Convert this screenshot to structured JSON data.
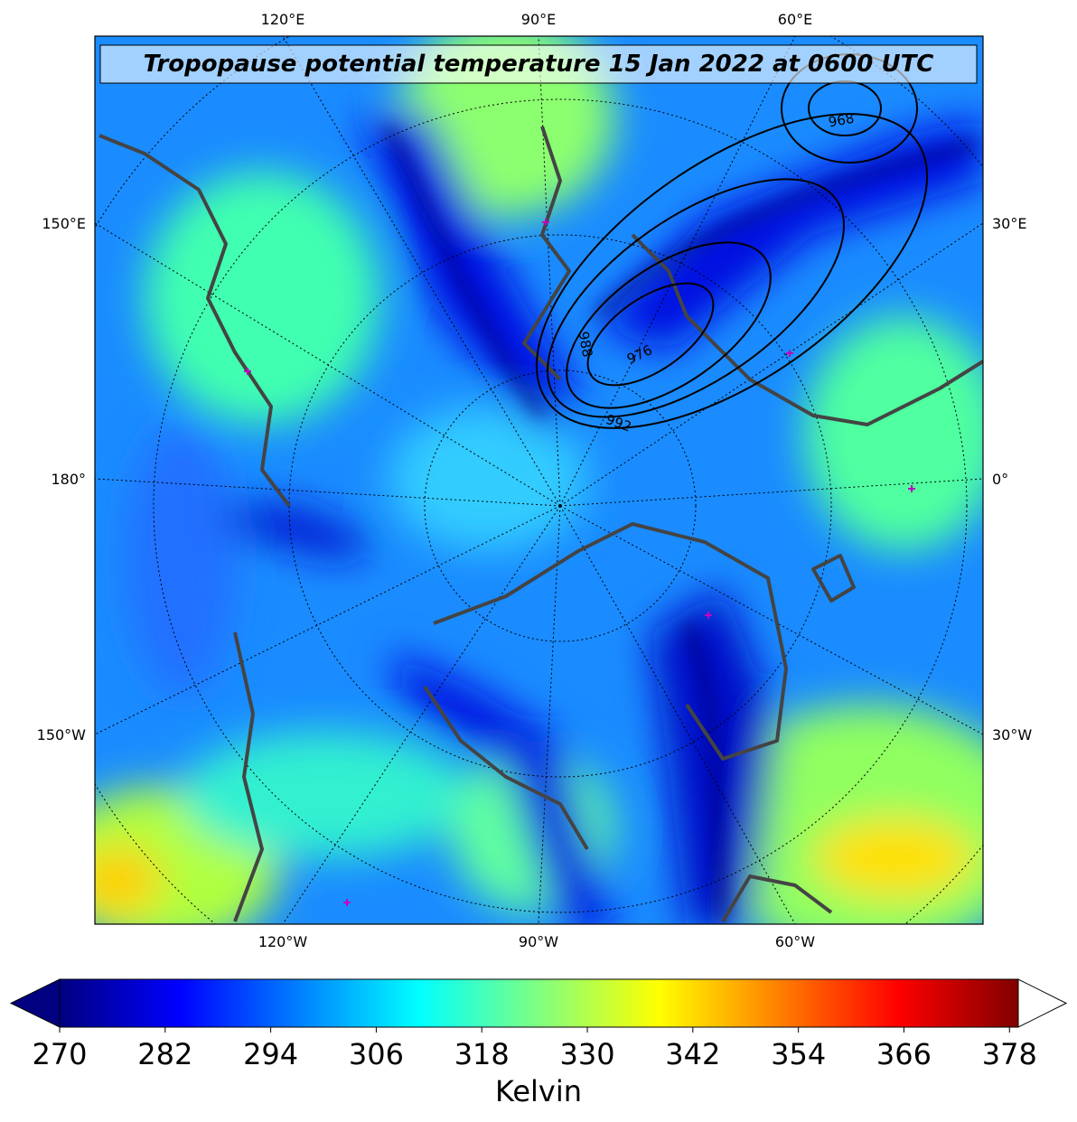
{
  "title": "Tropopause potential temperature 15 Jan 2022 at 0600 UTC",
  "longitude_labels": {
    "top": [
      "120°E",
      "90°E",
      "60°E"
    ],
    "bottom": [
      "120°W",
      "90°W",
      "60°W"
    ],
    "left": [
      "150°E",
      "180°",
      "150°W"
    ],
    "right": [
      "30°E",
      "0°",
      "30°W"
    ]
  },
  "contour_labels": [
    "988",
    "976",
    "992",
    "968"
  ],
  "colorbar": {
    "label": "Kelvin",
    "cmap": "jet",
    "range": [
      270,
      379
    ],
    "ticks": [
      270,
      282,
      294,
      306,
      318,
      330,
      342,
      354,
      366,
      378
    ]
  }
}
